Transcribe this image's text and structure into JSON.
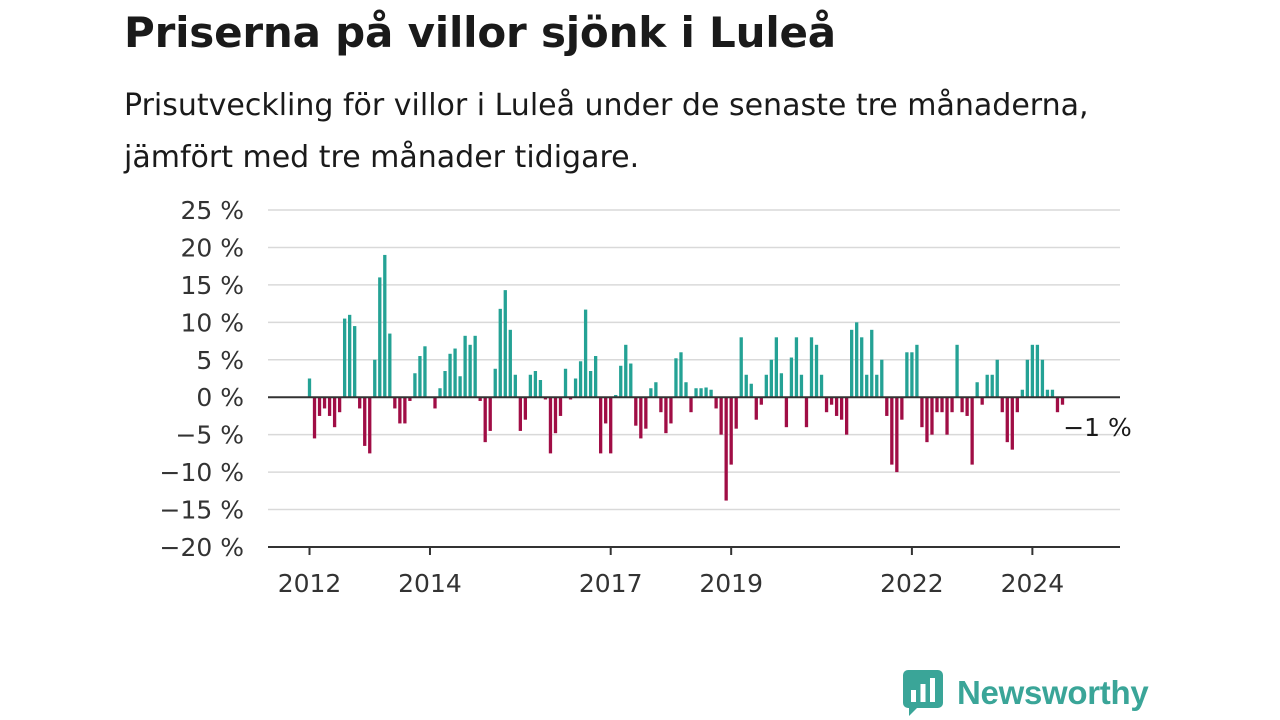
{
  "title": "Priserna på villor sjönk i Luleå",
  "subtitle": "Prisutveckling för villor i Luleå under de senaste tre månaderna, jämfört med tre månader tidigare.",
  "brand": {
    "name": "Newsworthy",
    "color": "#3aa598"
  },
  "colors": {
    "positive": "#24a295",
    "negative": "#a00d45",
    "grid": "#d9d9d9",
    "baseline": "#333333"
  },
  "chart_data": {
    "type": "bar",
    "title": "Priserna på villor sjönk i Luleå",
    "subtitle": "Prisutveckling för villor i Luleå under de senaste tre månaderna, jämfört med tre månader tidigare.",
    "xlabel": "",
    "ylabel": "",
    "ylim": [
      -20,
      25
    ],
    "yticks": [
      25,
      20,
      15,
      10,
      5,
      0,
      -5,
      -10,
      -15,
      -20
    ],
    "ytick_labels": [
      "25 %",
      "20 %",
      "15 %",
      "10 %",
      "5 %",
      "0 %",
      "−5 %",
      "−10 %",
      "−15 %",
      "−20 %"
    ],
    "xticks": [
      {
        "label": "2012",
        "month": 0
      },
      {
        "label": "2014",
        "month": 24
      },
      {
        "label": "2017",
        "month": 60
      },
      {
        "label": "2019",
        "month": 84
      },
      {
        "label": "2022",
        "month": 120
      },
      {
        "label": "2024",
        "month": 144
      }
    ],
    "grid": true,
    "start": "2012-01",
    "frequency": "monthly",
    "values": [
      2.5,
      -5.5,
      -2.5,
      -1.5,
      -2.5,
      -4.0,
      -2.0,
      10.5,
      11.0,
      9.5,
      -1.5,
      -6.5,
      -7.5,
      5.0,
      16.0,
      19.0,
      8.5,
      -1.5,
      -3.5,
      -3.5,
      -0.5,
      3.2,
      5.5,
      6.8,
      0,
      -1.5,
      1.2,
      3.5,
      5.8,
      6.5,
      2.8,
      8.2,
      7.0,
      8.2,
      -0.5,
      -6.0,
      -4.5,
      3.8,
      11.8,
      14.3,
      9.0,
      3.0,
      -4.5,
      -3.0,
      3.0,
      3.5,
      2.3,
      -0.3,
      -7.5,
      -4.8,
      -2.5,
      3.8,
      -0.3,
      2.5,
      4.8,
      11.7,
      3.5,
      5.5,
      -7.5,
      -3.5,
      -7.5,
      0.3,
      4.2,
      7.0,
      4.5,
      -3.8,
      -5.5,
      -4.2,
      1.2,
      2.0,
      -2.0,
      -4.8,
      -3.5,
      5.2,
      6.0,
      2.0,
      -2.0,
      1.2,
      1.2,
      1.3,
      1.0,
      -1.5,
      -5.0,
      -13.8,
      -9.0,
      -4.2,
      8.0,
      3.0,
      1.8,
      -3.0,
      -1.0,
      3.0,
      5.0,
      8.0,
      3.2,
      -4.0,
      5.3,
      8.0,
      3.0,
      -4.0,
      8.0,
      7.0,
      3.0,
      -2.0,
      -1.0,
      -2.5,
      -3.0,
      -5.0,
      9.0,
      10.0,
      8.0,
      3.0,
      9.0,
      3.0,
      5.0,
      -2.5,
      -9.0,
      -10.0,
      -3.0,
      6.0,
      6.0,
      7.0,
      -4.0,
      -6.0,
      -5.0,
      -2.0,
      -2.0,
      -5.0,
      -2.0,
      7.0,
      -2.0,
      -2.5,
      -9.0,
      2.0,
      -1.0,
      3.0,
      3.0,
      5.0,
      -2.0,
      -6.0,
      -7.0,
      -2.0,
      1.0,
      5.0,
      7.0,
      7.0,
      5.0,
      1.0,
      1.0,
      -2.0,
      -1.0
    ],
    "annotations": [
      {
        "text": "−1 %",
        "target": "last"
      }
    ]
  }
}
